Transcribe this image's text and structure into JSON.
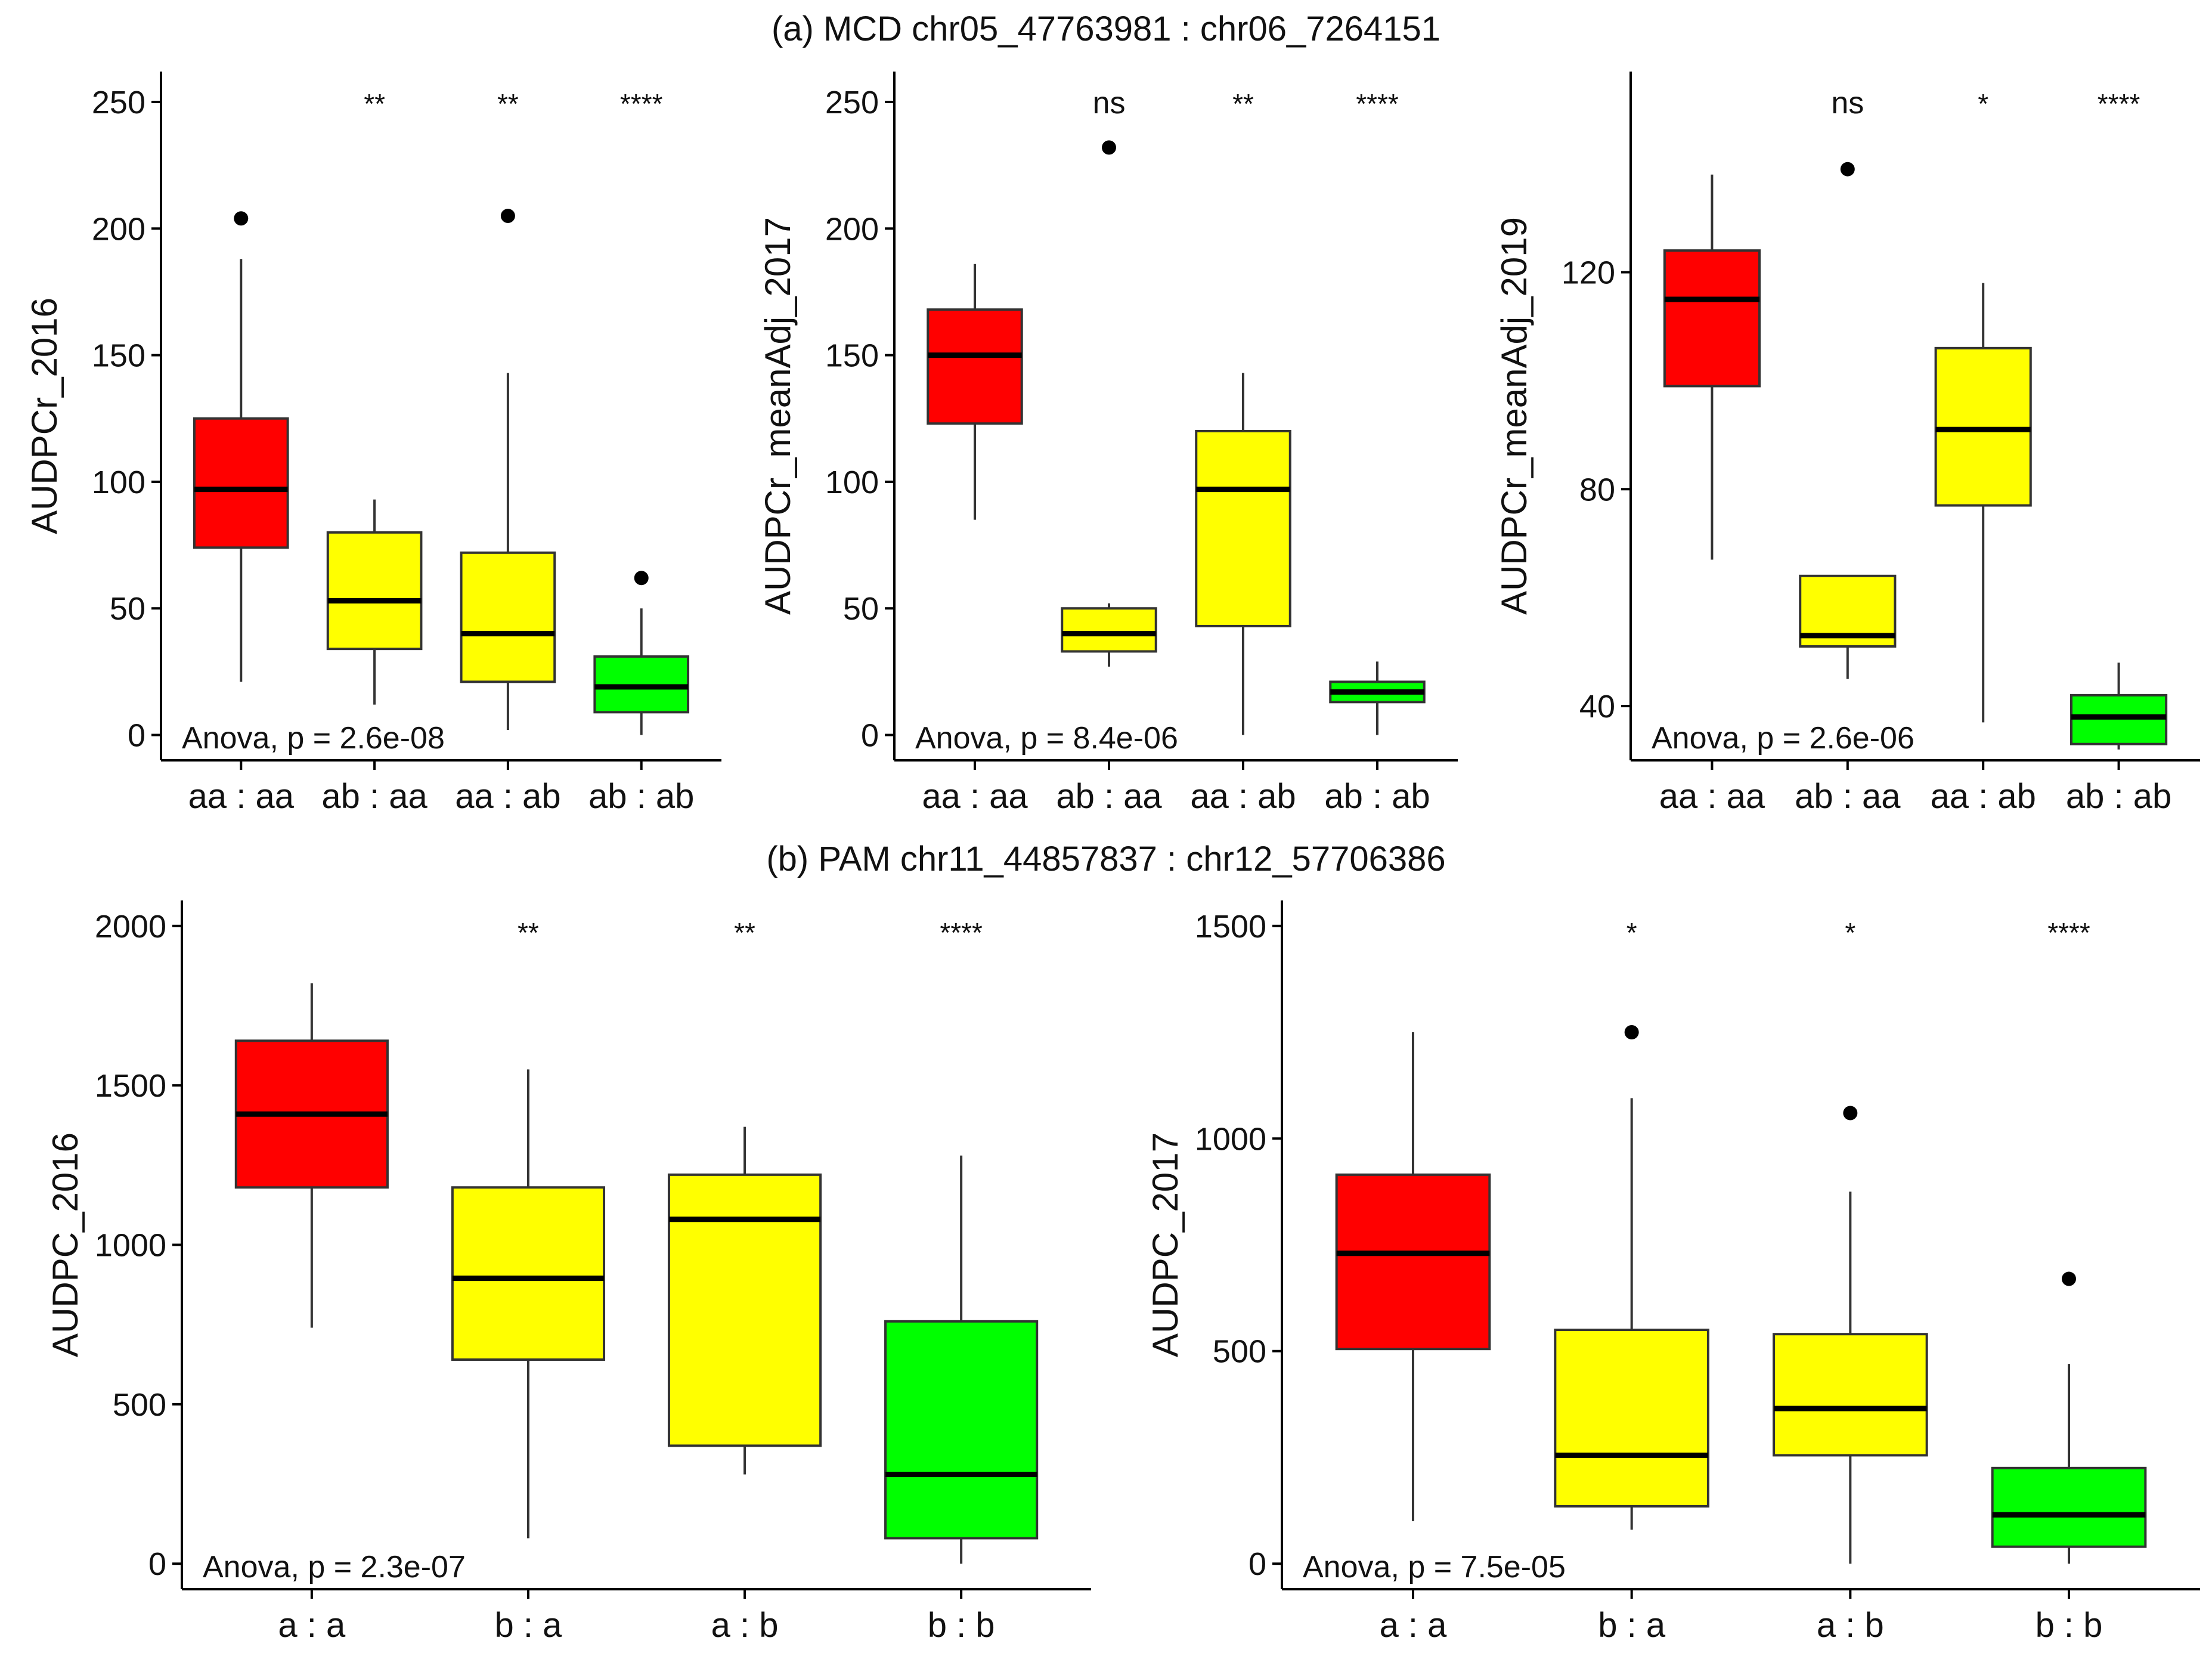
{
  "section_titles": {
    "a": "(a) MCD chr05_47763981 : chr06_7264151",
    "b": "(b) PAM chr11_44857837 : chr12_57706386"
  },
  "colors": {
    "red": "#ff0000",
    "yellow": "#ffff00",
    "green": "#00ff00",
    "outline": "#333333",
    "axis": "#000000"
  },
  "chart_data": [
    {
      "id": "a1",
      "type": "boxplot",
      "title": "",
      "xlabel": "",
      "ylabel": "AUDPCr_2016",
      "ylim": [
        -10,
        262
      ],
      "yticks": [
        0,
        50,
        100,
        150,
        200,
        250
      ],
      "annotation": "Anova, p = 2.6e-08",
      "categories": [
        "aa : aa",
        "ab : aa",
        "aa : ab",
        "ab : ab"
      ],
      "colors": [
        "red",
        "yellow",
        "yellow",
        "green"
      ],
      "significance": [
        "",
        "**",
        "**",
        "****"
      ],
      "boxes": [
        {
          "min": 21,
          "q1": 74,
          "median": 97,
          "q3": 125,
          "max": 188,
          "outliers": [
            204
          ]
        },
        {
          "min": 12,
          "q1": 34,
          "median": 53,
          "q3": 80,
          "max": 93,
          "outliers": []
        },
        {
          "min": 2,
          "q1": 21,
          "median": 40,
          "q3": 72,
          "max": 143,
          "outliers": [
            205
          ]
        },
        {
          "min": 0,
          "q1": 9,
          "median": 19,
          "q3": 31,
          "max": 50,
          "outliers": [
            62
          ]
        }
      ]
    },
    {
      "id": "a2",
      "type": "boxplot",
      "title": "",
      "xlabel": "",
      "ylabel": "AUDPCr_meanAdj_2017",
      "ylim": [
        -10,
        262
      ],
      "yticks": [
        0,
        50,
        100,
        150,
        200,
        250
      ],
      "annotation": "Anova, p = 8.4e-06",
      "categories": [
        "aa : aa",
        "ab : aa",
        "aa : ab",
        "ab : ab"
      ],
      "colors": [
        "red",
        "yellow",
        "yellow",
        "green"
      ],
      "significance": [
        "",
        "ns",
        "**",
        "****"
      ],
      "boxes": [
        {
          "min": 85,
          "q1": 123,
          "median": 150,
          "q3": 168,
          "max": 186,
          "outliers": []
        },
        {
          "min": 27,
          "q1": 33,
          "median": 40,
          "q3": 50,
          "max": 52,
          "outliers": [
            232
          ]
        },
        {
          "min": 0,
          "q1": 43,
          "median": 97,
          "q3": 120,
          "max": 143,
          "outliers": []
        },
        {
          "min": 0,
          "q1": 13,
          "median": 17,
          "q3": 21,
          "max": 29,
          "outliers": []
        }
      ]
    },
    {
      "id": "a3",
      "type": "boxplot",
      "title": "",
      "xlabel": "",
      "ylabel": "AUDPCr_meanAdj_2019",
      "ylim": [
        30,
        157
      ],
      "yticks": [
        40,
        80,
        120
      ],
      "annotation": "Anova, p = 2.6e-06",
      "categories": [
        "aa : aa",
        "ab : aa",
        "aa : ab",
        "ab : ab"
      ],
      "colors": [
        "red",
        "yellow",
        "yellow",
        "green"
      ],
      "significance": [
        "",
        "ns",
        "*",
        "****"
      ],
      "boxes": [
        {
          "min": 67,
          "q1": 99,
          "median": 115,
          "q3": 124,
          "max": 138,
          "outliers": []
        },
        {
          "min": 45,
          "q1": 51,
          "median": 53,
          "q3": 64,
          "max": 64,
          "outliers": [
            139
          ]
        },
        {
          "min": 37,
          "q1": 77,
          "median": 91,
          "q3": 106,
          "max": 118,
          "outliers": []
        },
        {
          "min": 32,
          "q1": 33,
          "median": 38,
          "q3": 42,
          "max": 48,
          "outliers": []
        }
      ]
    },
    {
      "id": "b1",
      "type": "boxplot",
      "title": "",
      "xlabel": "",
      "ylabel": "AUDPC_2016",
      "ylim": [
        -80,
        2080
      ],
      "yticks": [
        0,
        500,
        1000,
        1500,
        2000
      ],
      "annotation": "Anova, p = 2.3e-07",
      "categories": [
        "a : a",
        "b : a",
        "a : b",
        "b : b"
      ],
      "colors": [
        "red",
        "yellow",
        "yellow",
        "green"
      ],
      "significance": [
        "",
        "**",
        "**",
        "****"
      ],
      "boxes": [
        {
          "min": 740,
          "q1": 1180,
          "median": 1410,
          "q3": 1640,
          "max": 1820,
          "outliers": []
        },
        {
          "min": 80,
          "q1": 640,
          "median": 895,
          "q3": 1180,
          "max": 1550,
          "outliers": []
        },
        {
          "min": 280,
          "q1": 370,
          "median": 1080,
          "q3": 1220,
          "max": 1370,
          "outliers": []
        },
        {
          "min": 0,
          "q1": 80,
          "median": 280,
          "q3": 760,
          "max": 1280,
          "outliers": []
        }
      ]
    },
    {
      "id": "b2",
      "type": "boxplot",
      "title": "",
      "xlabel": "",
      "ylabel": "AUDPC_2017",
      "ylim": [
        -60,
        1560
      ],
      "yticks": [
        0,
        500,
        1000,
        1500
      ],
      "annotation": "Anova, p = 7.5e-05",
      "categories": [
        "a : a",
        "b : a",
        "a : b",
        "b : b"
      ],
      "colors": [
        "red",
        "yellow",
        "yellow",
        "green"
      ],
      "significance": [
        "",
        "*",
        "*",
        "****"
      ],
      "boxes": [
        {
          "min": 100,
          "q1": 505,
          "median": 730,
          "q3": 915,
          "max": 1250,
          "outliers": []
        },
        {
          "min": 80,
          "q1": 135,
          "median": 255,
          "q3": 550,
          "max": 1095,
          "outliers": [
            1250
          ]
        },
        {
          "min": 0,
          "q1": 255,
          "median": 365,
          "q3": 540,
          "max": 875,
          "outliers": [
            1060
          ]
        },
        {
          "min": 0,
          "q1": 40,
          "median": 115,
          "q3": 225,
          "max": 470,
          "outliers": [
            670
          ]
        }
      ]
    }
  ]
}
